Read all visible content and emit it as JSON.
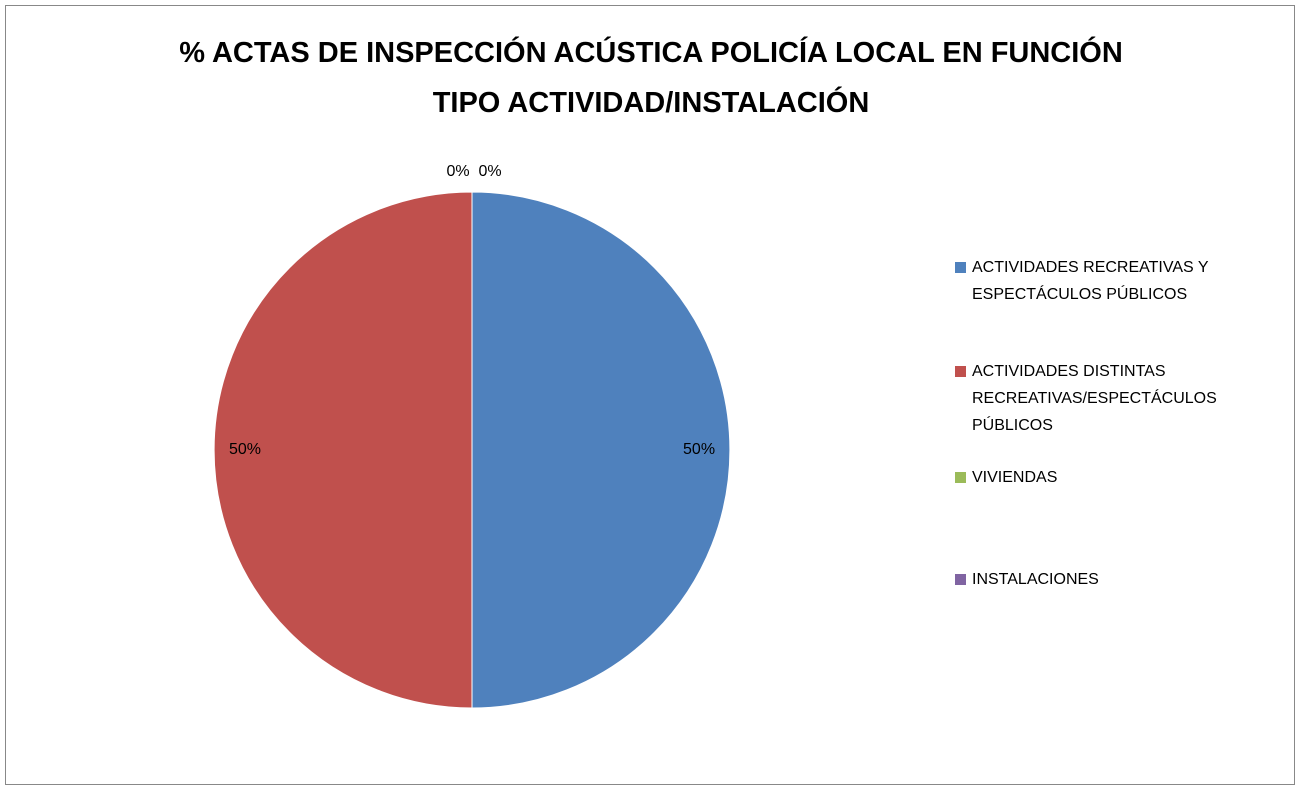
{
  "chart_data": {
    "type": "pie",
    "title": "% ACTAS DE INSPECCIÓN ACÚSTICA POLICÍA LOCAL EN FUNCIÓN TIPO ACTIVIDAD/INSTALACIÓN",
    "categories": [
      "ACTIVIDADES RECREATIVAS Y ESPECTÁCULOS PÚBLICOS",
      "ACTIVIDADES DISTINTAS RECREATIVAS/ESPECTÁCULOS PÚBLICOS",
      "VIVIENDAS",
      "INSTALACIONES"
    ],
    "values": [
      50,
      50,
      0,
      0
    ],
    "value_labels": [
      "50%",
      "50%",
      "0%",
      "0%"
    ],
    "colors": [
      "#4f81bd",
      "#c0504d",
      "#9bbb59",
      "#8064a2"
    ],
    "legend": "right"
  }
}
